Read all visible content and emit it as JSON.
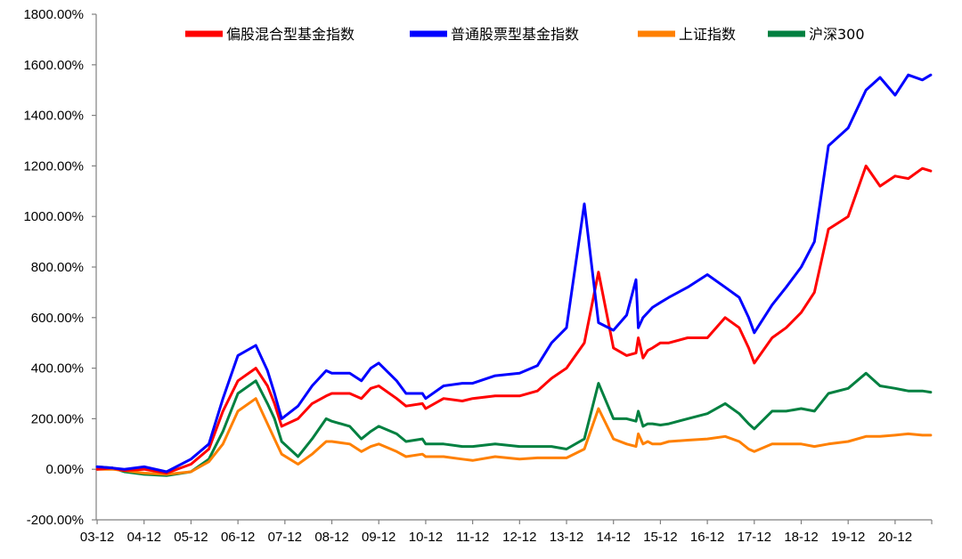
{
  "chart_data": {
    "type": "line",
    "xlabel": "",
    "ylabel": "",
    "x_ticks": [
      "03-12",
      "04-12",
      "05-12",
      "06-12",
      "07-12",
      "08-12",
      "09-12",
      "10-12",
      "11-12",
      "12-12",
      "13-12",
      "14-12",
      "15-12",
      "16-12",
      "17-12",
      "18-12",
      "19-12",
      "20-12"
    ],
    "y_ticks": [
      "-200.00%",
      "0.00%",
      "200.00%",
      "400.00%",
      "600.00%",
      "800.00%",
      "1000.00%",
      "1200.00%",
      "1400.00%",
      "1600.00%",
      "1800.00%"
    ],
    "ylim": [
      -200,
      1800
    ],
    "xlim": [
      2003.9,
      2021.7
    ],
    "legend_position": "top",
    "series": [
      {
        "name": "偏股混合型基金指数",
        "color": "#ff0000",
        "x": [
          2003.92,
          2004.25,
          2004.5,
          2004.92,
          2005.4,
          2005.92,
          2006.3,
          2006.6,
          2006.92,
          2007.3,
          2007.55,
          2007.7,
          2007.85,
          2008.2,
          2008.5,
          2008.8,
          2008.92,
          2009.3,
          2009.55,
          2009.75,
          2009.92,
          2010.3,
          2010.5,
          2010.85,
          2010.92,
          2011.3,
          2011.7,
          2011.92,
          2012.4,
          2012.92,
          2013.3,
          2013.6,
          2013.92,
          2014.3,
          2014.6,
          2014.92,
          2015.2,
          2015.4,
          2015.45,
          2015.55,
          2015.65,
          2015.75,
          2015.92,
          2016.1,
          2016.5,
          2016.92,
          2017.3,
          2017.6,
          2017.8,
          2017.92,
          2018.3,
          2018.6,
          2018.92,
          2019.2,
          2019.5,
          2019.92,
          2020.3,
          2020.6,
          2020.92,
          2021.2,
          2021.5,
          2021.68
        ],
        "values": [
          0,
          5,
          -5,
          0,
          -15,
          20,
          80,
          230,
          350,
          400,
          330,
          260,
          170,
          200,
          260,
          290,
          300,
          300,
          280,
          320,
          330,
          280,
          250,
          260,
          240,
          280,
          270,
          280,
          290,
          290,
          310,
          360,
          400,
          500,
          780,
          480,
          450,
          460,
          520,
          440,
          470,
          480,
          500,
          500,
          520,
          520,
          600,
          560,
          480,
          420,
          520,
          560,
          620,
          700,
          950,
          1000,
          1200,
          1120,
          1160,
          1150,
          1190,
          1180
        ]
      },
      {
        "name": "普通股票型基金指数",
        "color": "#0000ff",
        "x": [
          2003.92,
          2004.25,
          2004.5,
          2004.92,
          2005.4,
          2005.92,
          2006.3,
          2006.6,
          2006.92,
          2007.3,
          2007.55,
          2007.7,
          2007.85,
          2008.2,
          2008.5,
          2008.8,
          2008.92,
          2009.3,
          2009.55,
          2009.75,
          2009.92,
          2010.3,
          2010.5,
          2010.85,
          2010.92,
          2011.3,
          2011.7,
          2011.92,
          2012.4,
          2012.92,
          2013.3,
          2013.6,
          2013.92,
          2014.3,
          2014.6,
          2014.92,
          2015.2,
          2015.4,
          2015.45,
          2015.55,
          2015.65,
          2015.75,
          2015.92,
          2016.1,
          2016.5,
          2016.92,
          2017.3,
          2017.6,
          2017.8,
          2017.92,
          2018.3,
          2018.6,
          2018.92,
          2019.2,
          2019.5,
          2019.92,
          2020.3,
          2020.6,
          2020.92,
          2021.2,
          2021.5,
          2021.68
        ],
        "values": [
          10,
          5,
          0,
          10,
          -10,
          40,
          100,
          280,
          450,
          490,
          390,
          300,
          200,
          250,
          330,
          390,
          380,
          380,
          350,
          400,
          420,
          350,
          300,
          300,
          280,
          330,
          340,
          340,
          370,
          380,
          410,
          500,
          560,
          1050,
          580,
          550,
          610,
          750,
          560,
          600,
          620,
          640,
          660,
          680,
          720,
          770,
          720,
          680,
          600,
          540,
          650,
          720,
          800,
          900,
          1280,
          1350,
          1500,
          1550,
          1480,
          1560,
          1540,
          1560
        ],
        "values_note": ""
      },
      {
        "name": "上证指数",
        "color": "#ff8000",
        "x": [
          2003.92,
          2004.25,
          2004.5,
          2004.92,
          2005.4,
          2005.92,
          2006.3,
          2006.6,
          2006.92,
          2007.3,
          2007.55,
          2007.7,
          2007.85,
          2008.2,
          2008.5,
          2008.8,
          2008.92,
          2009.3,
          2009.55,
          2009.75,
          2009.92,
          2010.3,
          2010.5,
          2010.85,
          2010.92,
          2011.3,
          2011.7,
          2011.92,
          2012.4,
          2012.92,
          2013.3,
          2013.6,
          2013.92,
          2014.3,
          2014.6,
          2014.92,
          2015.2,
          2015.4,
          2015.45,
          2015.55,
          2015.65,
          2015.75,
          2015.92,
          2016.1,
          2016.5,
          2016.92,
          2017.3,
          2017.6,
          2017.8,
          2017.92,
          2018.3,
          2018.6,
          2018.92,
          2019.2,
          2019.5,
          2019.92,
          2020.3,
          2020.6,
          2020.92,
          2021.2,
          2021.5,
          2021.68
        ],
        "values": [
          0,
          0,
          -5,
          -15,
          -20,
          -10,
          30,
          100,
          230,
          280,
          180,
          120,
          60,
          20,
          60,
          110,
          110,
          100,
          70,
          90,
          100,
          70,
          50,
          60,
          50,
          50,
          40,
          35,
          50,
          40,
          45,
          45,
          45,
          80,
          240,
          120,
          100,
          90,
          140,
          100,
          110,
          100,
          100,
          110,
          115,
          120,
          130,
          110,
          80,
          70,
          100,
          100,
          100,
          90,
          100,
          110,
          130,
          130,
          135,
          140,
          135,
          135
        ]
      },
      {
        "name": "沪深300",
        "color": "#008040",
        "x": [
          2003.92,
          2004.25,
          2004.5,
          2004.92,
          2005.4,
          2005.92,
          2006.3,
          2006.6,
          2006.92,
          2007.3,
          2007.55,
          2007.7,
          2007.85,
          2008.2,
          2008.5,
          2008.8,
          2008.92,
          2009.3,
          2009.55,
          2009.75,
          2009.92,
          2010.3,
          2010.5,
          2010.85,
          2010.92,
          2011.3,
          2011.7,
          2011.92,
          2012.4,
          2012.92,
          2013.3,
          2013.6,
          2013.92,
          2014.3,
          2014.6,
          2014.92,
          2015.2,
          2015.4,
          2015.45,
          2015.55,
          2015.65,
          2015.75,
          2015.92,
          2016.1,
          2016.5,
          2016.92,
          2017.3,
          2017.6,
          2017.8,
          2017.92,
          2018.3,
          2018.6,
          2018.92,
          2019.2,
          2019.5,
          2019.92,
          2020.3,
          2020.6,
          2020.92,
          2021.2,
          2021.5,
          2021.68
        ],
        "values": [
          10,
          5,
          -10,
          -20,
          -25,
          -10,
          40,
          150,
          300,
          350,
          260,
          200,
          110,
          50,
          120,
          200,
          190,
          170,
          120,
          150,
          170,
          140,
          110,
          120,
          100,
          100,
          90,
          90,
          100,
          90,
          90,
          90,
          80,
          120,
          340,
          200,
          200,
          190,
          230,
          170,
          180,
          180,
          175,
          180,
          200,
          220,
          260,
          220,
          180,
          160,
          230,
          230,
          240,
          230,
          300,
          320,
          380,
          330,
          320,
          310,
          310,
          305
        ]
      }
    ]
  }
}
